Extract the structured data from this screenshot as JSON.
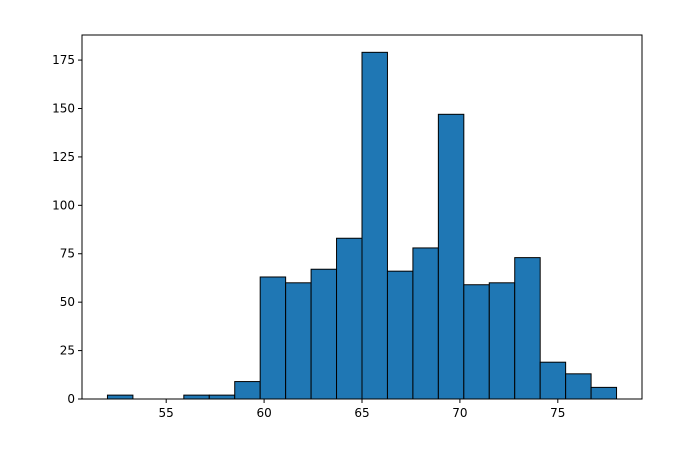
{
  "chart_data": {
    "type": "histogram",
    "bins": [
      52,
      53.3,
      54.6,
      55.9,
      57.2,
      58.5,
      59.8,
      61.1,
      62.4,
      63.7,
      65,
      66.3,
      67.6,
      68.9,
      70.2,
      71.5,
      72.8,
      74.1,
      75.4,
      76.7,
      78
    ],
    "values": [
      2,
      0,
      0,
      2,
      2,
      9,
      63,
      60,
      67,
      83,
      179,
      66,
      78,
      147,
      59,
      60,
      73,
      19,
      13,
      6
    ],
    "color": "#1f77b4",
    "edgecolor": "#000000",
    "xlim": [
      50.7,
      79.3
    ],
    "xticks": [
      55,
      60,
      65,
      70,
      75
    ],
    "ylim": [
      0,
      187.95
    ],
    "yticks": [
      0,
      25,
      50,
      75,
      100,
      125,
      150,
      175
    ]
  }
}
